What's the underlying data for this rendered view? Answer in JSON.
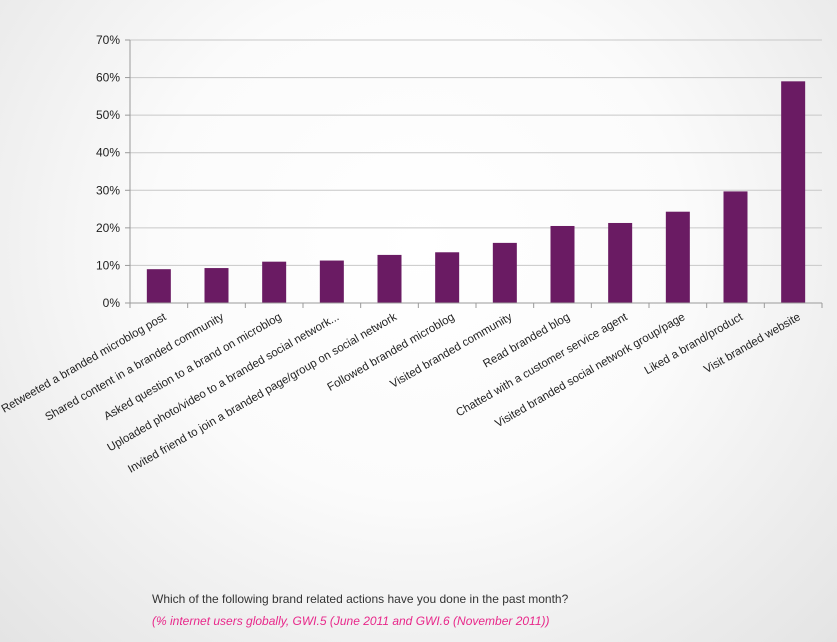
{
  "chart_data": {
    "type": "bar",
    "categories": [
      "Retweeted a branded microblog post",
      "Shared content in a branded community",
      "Asked question to a brand on microblog",
      "Uploaded photo/video to a branded social network...",
      "Invited friend to join a branded page/group on social network",
      "Followed branded microblog",
      "Visited branded community",
      "Read branded blog",
      "Chatted with a customer service agent",
      "Visited branded social network group/page",
      "Liked a brand/product",
      "Visit branded website"
    ],
    "values": [
      9,
      9.3,
      11,
      11.3,
      12.8,
      13.5,
      16,
      20.5,
      21.3,
      24.3,
      29.7,
      59
    ],
    "ylim": [
      0,
      70
    ],
    "yticks": [
      "0%",
      "10%",
      "20%",
      "30%",
      "40%",
      "50%",
      "60%",
      "70%"
    ],
    "ytick_values": [
      0,
      10,
      20,
      30,
      40,
      50,
      60,
      70
    ],
    "grid": true,
    "legend": "none",
    "bar_color": "#6a1b63",
    "title": "",
    "xlabel": "",
    "ylabel": ""
  },
  "footer": {
    "question": "Which of the following brand related actions have you done in the past month?",
    "source": "(% internet users globally, GWI.5 (June 2011 and GWI.6 (November 2011))"
  },
  "colors": {
    "source_text": "#e8288a",
    "gridline": "#c8c8c8"
  }
}
